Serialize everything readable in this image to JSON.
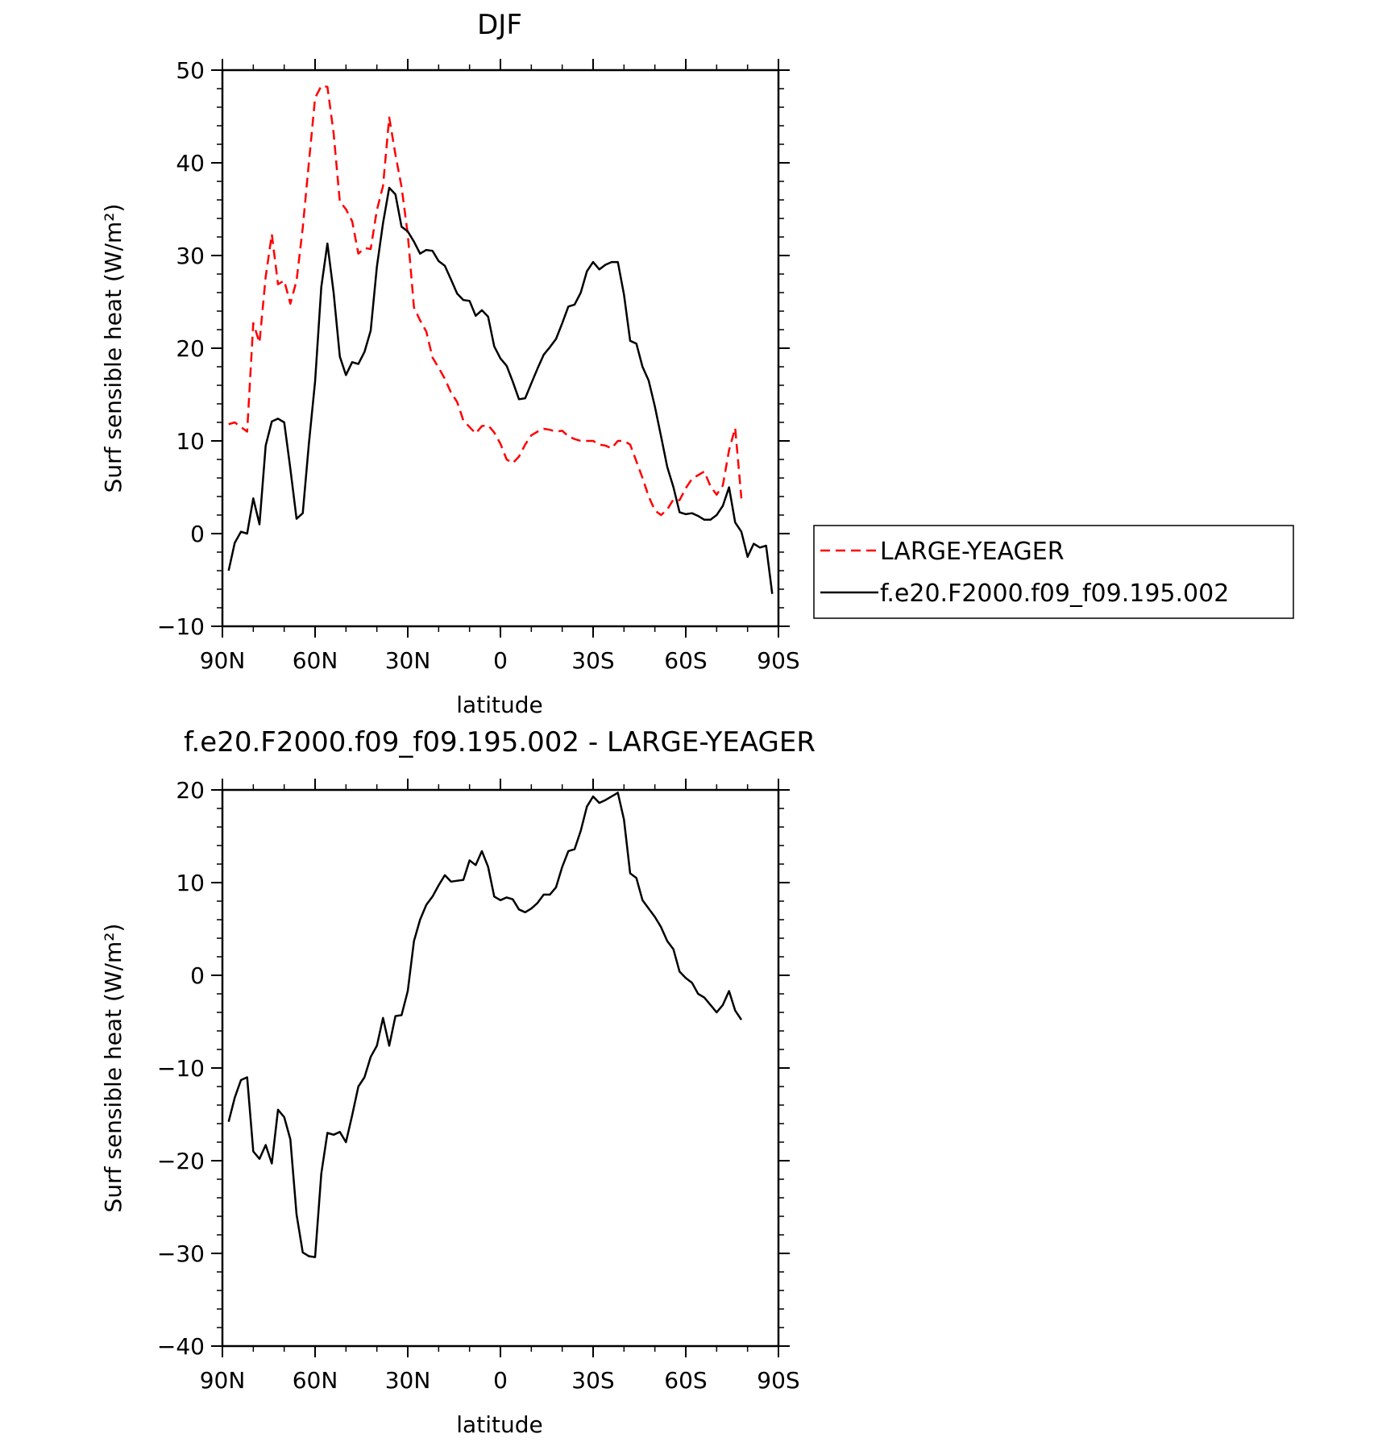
{
  "chart_data": [
    {
      "type": "line",
      "title": "DJF",
      "xlabel": "latitude",
      "ylabel": "Surf sensible heat (W/m²)",
      "ylim": [
        -10,
        50
      ],
      "xlim": [
        90,
        -90
      ],
      "yticks": [
        -10,
        0,
        10,
        20,
        30,
        40,
        50
      ],
      "xticks": [
        90,
        60,
        30,
        0,
        -30,
        -60,
        -90
      ],
      "xtick_labels": [
        "90N",
        "60N",
        "30N",
        "0",
        "30S",
        "60S",
        "90S"
      ],
      "legend_position": "right",
      "series": [
        {
          "name": "LARGE-YEAGER",
          "color": "#ff0000",
          "style": "dashed",
          "x": [
            88,
            86,
            84,
            82,
            80,
            78,
            76,
            74,
            72,
            70,
            68,
            66,
            64,
            62,
            60,
            58,
            56,
            54,
            52,
            50,
            48,
            46,
            44,
            42,
            40,
            38,
            36,
            34,
            32,
            30,
            28,
            26,
            24,
            22,
            20,
            18,
            16,
            14,
            12,
            10,
            8,
            6,
            4,
            2,
            0,
            -2,
            -4,
            -6,
            -8,
            -10,
            -12,
            -14,
            -16,
            -18,
            -20,
            -22,
            -24,
            -26,
            -28,
            -30,
            -32,
            -34,
            -36,
            -38,
            -40,
            -42,
            -44,
            -46,
            -48,
            -50,
            -52,
            -54,
            -56,
            -58,
            -60,
            -62,
            -64,
            -66,
            -68,
            -70,
            -72,
            -74,
            -76,
            -78
          ],
          "y": [
            11.8,
            12.0,
            11.5,
            11.0,
            22.7,
            20.6,
            27.7,
            32.3,
            26.9,
            27.3,
            24.8,
            27.3,
            33.0,
            40.0,
            47.0,
            48.3,
            48.2,
            43.2,
            35.8,
            35.0,
            33.7,
            30.2,
            30.8,
            30.7,
            34.9,
            37.5,
            44.9,
            40.9,
            37.4,
            32.3,
            24.4,
            23.0,
            21.8,
            19.0,
            17.9,
            16.7,
            15.2,
            14.2,
            12.2,
            11.5,
            10.8,
            11.6,
            11.7,
            10.9,
            9.7,
            8.0,
            7.6,
            8.3,
            9.6,
            10.6,
            11.0,
            11.3,
            11.2,
            11.0,
            11.1,
            10.5,
            10.2,
            10.0,
            10.0,
            10.0,
            9.6,
            9.5,
            9.2,
            10.0,
            10.0,
            9.6,
            7.8,
            6.0,
            4.0,
            2.5,
            2.0,
            2.6,
            3.7,
            3.6,
            4.9,
            5.9,
            6.3,
            6.7,
            5.1,
            4.2,
            5.2,
            9.0,
            11.4,
            3.8
          ]
        },
        {
          "name": "f.e20.F2000.f09_f09.195.002",
          "color": "#000000",
          "style": "solid",
          "x": [
            88,
            86,
            84,
            82,
            80,
            78,
            76,
            74,
            72,
            70,
            68,
            66,
            64,
            62,
            60,
            58,
            56,
            54,
            52,
            50,
            48,
            46,
            44,
            42,
            40,
            38,
            36,
            34,
            32,
            30,
            28,
            26,
            24,
            22,
            20,
            18,
            16,
            14,
            12,
            10,
            8,
            6,
            4,
            2,
            0,
            -2,
            -4,
            -6,
            -8,
            -10,
            -12,
            -14,
            -16,
            -18,
            -20,
            -22,
            -24,
            -26,
            -28,
            -30,
            -32,
            -34,
            -36,
            -38,
            -40,
            -42,
            -44,
            -46,
            -48,
            -50,
            -52,
            -54,
            -56,
            -58,
            -60,
            -62,
            -64,
            -66,
            -68,
            -70,
            -72,
            -74,
            -76,
            -78,
            -80,
            -82,
            -84,
            -86,
            -88
          ],
          "y": [
            -4.0,
            -1.0,
            0.2,
            0.0,
            3.8,
            1.0,
            9.5,
            12.1,
            12.4,
            12.0,
            7.0,
            1.6,
            2.2,
            9.7,
            16.4,
            26.6,
            31.3,
            26.0,
            19.1,
            17.1,
            18.5,
            18.3,
            19.6,
            21.9,
            28.8,
            33.5,
            37.3,
            36.6,
            33.1,
            32.6,
            31.5,
            30.2,
            30.6,
            30.5,
            29.4,
            28.9,
            27.4,
            25.9,
            25.2,
            25.1,
            23.5,
            24.1,
            23.4,
            20.2,
            18.9,
            18.1,
            16.4,
            14.5,
            14.6,
            16.2,
            17.8,
            19.3,
            20.1,
            21.0,
            22.7,
            24.5,
            24.7,
            26.0,
            28.3,
            29.3,
            28.5,
            29.0,
            29.3,
            29.3,
            25.8,
            20.8,
            20.5,
            18.0,
            16.5,
            13.7,
            10.5,
            7.2,
            5.0,
            2.3,
            2.1,
            2.2,
            1.9,
            1.5,
            1.5,
            2.0,
            3.0,
            5.0,
            1.2,
            0.2,
            -2.5,
            -1.1,
            -1.5,
            -1.3,
            -6.5
          ]
        }
      ]
    },
    {
      "type": "line",
      "title": "f.e20.F2000.f09_f09.195.002 - LARGE-YEAGER",
      "xlabel": "latitude",
      "ylabel": "Surf sensible heat (W/m²)",
      "ylim": [
        -40,
        20
      ],
      "xlim": [
        90,
        -90
      ],
      "yticks": [
        -40,
        -30,
        -20,
        -10,
        0,
        10,
        20
      ],
      "xticks": [
        90,
        60,
        30,
        0,
        -30,
        -60,
        -90
      ],
      "xtick_labels": [
        "90N",
        "60N",
        "30N",
        "0",
        "30S",
        "60S",
        "90S"
      ],
      "series": [
        {
          "color": "#000000",
          "style": "solid",
          "x": [
            88,
            86,
            84,
            82,
            80,
            78,
            76,
            74,
            72,
            70,
            68,
            66,
            64,
            62,
            60,
            58,
            56,
            54,
            52,
            50,
            48,
            46,
            44,
            42,
            40,
            38,
            36,
            34,
            32,
            30,
            28,
            26,
            24,
            22,
            20,
            18,
            16,
            14,
            12,
            10,
            8,
            6,
            4,
            2,
            0,
            -2,
            -4,
            -6,
            -8,
            -10,
            -12,
            -14,
            -16,
            -18,
            -20,
            -22,
            -24,
            -26,
            -28,
            -30,
            -32,
            -34,
            -36,
            -38,
            -40,
            -42,
            -44,
            -46,
            -48,
            -50,
            -52,
            -54,
            -56,
            -58,
            -60,
            -62,
            -64,
            -66,
            -68,
            -70,
            -72,
            -74,
            -76,
            -78
          ],
          "y": [
            -15.8,
            -13.2,
            -11.3,
            -11.0,
            -19.0,
            -19.8,
            -18.3,
            -20.3,
            -14.5,
            -15.3,
            -17.7,
            -25.8,
            -29.9,
            -30.3,
            -30.4,
            -21.4,
            -17.0,
            -17.2,
            -16.9,
            -18.0,
            -15.1,
            -12.0,
            -11.0,
            -8.8,
            -7.6,
            -4.6,
            -7.6,
            -4.4,
            -4.3,
            -1.7,
            3.7,
            6.0,
            7.6,
            8.5,
            9.7,
            10.8,
            10.1,
            10.2,
            10.3,
            12.4,
            11.9,
            13.4,
            11.7,
            8.5,
            8.1,
            8.4,
            8.2,
            7.1,
            6.8,
            7.2,
            7.8,
            8.7,
            8.7,
            9.5,
            11.7,
            13.4,
            13.6,
            15.6,
            18.2,
            19.3,
            18.6,
            18.9,
            19.3,
            19.7,
            16.8,
            11.0,
            10.5,
            8.1,
            7.2,
            6.3,
            5.2,
            3.7,
            2.8,
            0.4,
            -0.3,
            -0.8,
            -2.0,
            -2.4,
            -3.2,
            -4.0,
            -3.2,
            -1.7,
            -3.8,
            -4.8
          ]
        }
      ]
    }
  ]
}
